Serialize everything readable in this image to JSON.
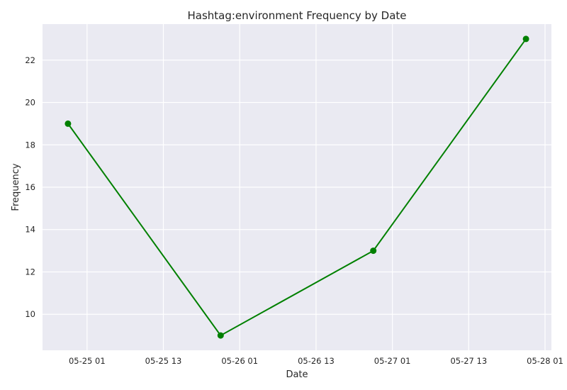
{
  "chart_data": {
    "type": "line",
    "title": "Hashtag:environment Frequency by Date",
    "xlabel": "Date",
    "ylabel": "Frequency",
    "x": [
      "2024-05-24T22:00",
      "2024-05-25T22:00",
      "2024-05-26T22:00",
      "2024-05-27T22:00"
    ],
    "series": [
      {
        "values": [
          19,
          9,
          13,
          23
        ],
        "color": "#008000",
        "marker": "circle"
      }
    ],
    "xticks": [
      "05-25 01",
      "05-25 13",
      "05-26 01",
      "05-26 13",
      "05-27 01",
      "05-27 13",
      "05-28 01"
    ],
    "yticks": [
      10,
      12,
      14,
      16,
      18,
      20,
      22
    ],
    "xlim": [
      "2024-05-24T18:00",
      "2024-05-28T02:00"
    ],
    "ylim": [
      8.3,
      23.7
    ],
    "grid": true,
    "colors": {
      "plot_background": "#eaeaf2",
      "grid": "#ffffff",
      "line": "#008000"
    }
  }
}
